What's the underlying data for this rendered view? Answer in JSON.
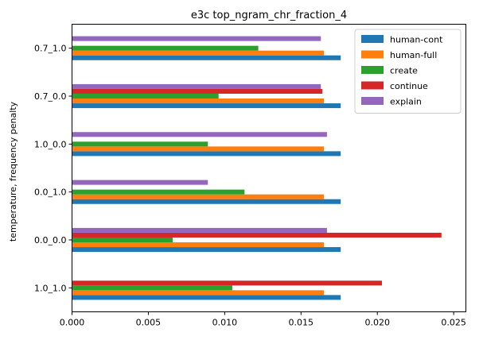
{
  "chart_data": {
    "type": "bar",
    "orientation": "horizontal",
    "title": "e3c top_ngram_chr_fraction_4",
    "xlabel": "",
    "ylabel": "temperature, frequency penalty",
    "xlim": [
      0,
      0.0258
    ],
    "xticks": [
      "0.000",
      "0.005",
      "0.010",
      "0.015",
      "0.020",
      "0.025"
    ],
    "xtick_values": [
      0,
      0.005,
      0.01,
      0.015,
      0.02,
      0.025
    ],
    "categories": [
      "1.0_1.0",
      "0.0_0.0",
      "0.0_1.0",
      "1.0_0.0",
      "0.7_0.0",
      "0.7_1.0"
    ],
    "grid": false,
    "legend_position": "top-right",
    "series": [
      {
        "name": "human-cont",
        "color": "#1f77b4",
        "values": [
          0.0176,
          0.0176,
          0.0176,
          0.0176,
          0.0176,
          0.0176
        ]
      },
      {
        "name": "human-full",
        "color": "#ff7f0e",
        "values": [
          0.0165,
          0.0165,
          0.0165,
          0.0165,
          0.0165,
          0.0165
        ]
      },
      {
        "name": "create",
        "color": "#2ca02c",
        "values": [
          0.0105,
          0.0066,
          0.0113,
          0.0089,
          0.0096,
          0.0122
        ]
      },
      {
        "name": "continue",
        "color": "#d62728",
        "values": [
          0.0203,
          0.0242,
          null,
          null,
          0.0164,
          null
        ]
      },
      {
        "name": "explain",
        "color": "#9467bd",
        "values": [
          null,
          0.0167,
          0.0089,
          0.0167,
          0.0163,
          0.0163
        ]
      }
    ]
  }
}
